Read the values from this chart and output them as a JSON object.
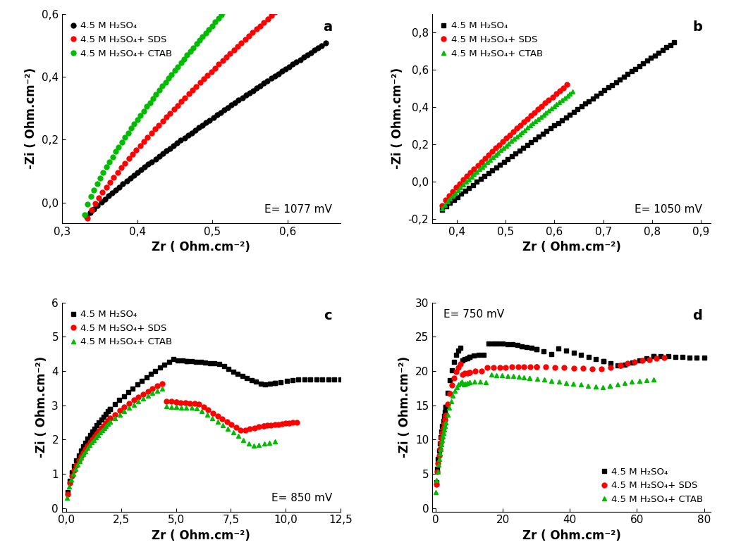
{
  "panel_labels": [
    "a",
    "b",
    "c",
    "d"
  ],
  "voltage_labels": [
    "E= 1077 mV",
    "E= 1050 mV",
    "E= 850 mV",
    "E= 750 mV"
  ],
  "legend_labels_a": [
    "4.5 M H₂SO₄",
    "4.5 M H₂SO₄+ SDS",
    "4.5 M H₂SO₄+ CTAB"
  ],
  "legend_labels_bcd": [
    "4.5 M H₂SO₄",
    "4.5 M H₂SO₄+ SDS",
    "4.5 M H₂SO₄+ CTAB"
  ],
  "colors": [
    "#000000",
    "#ff0000",
    "#00bb00"
  ],
  "xlabel": "Zr ( Ohm.cm⁻²)",
  "ylabel": "-Zi ( Ohm.cm⁻²)",
  "xlim_a": [
    0.3,
    0.67
  ],
  "ylim_a": [
    -0.065,
    0.6
  ],
  "xticks_a": [
    0.3,
    0.4,
    0.5,
    0.6
  ],
  "yticks_a": [
    0.0,
    0.2,
    0.4,
    0.6
  ],
  "xlim_b": [
    0.35,
    0.92
  ],
  "ylim_b": [
    -0.22,
    0.9
  ],
  "xticks_b": [
    0.4,
    0.5,
    0.6,
    0.7,
    0.8,
    0.9
  ],
  "yticks_b": [
    -0.2,
    0.0,
    0.2,
    0.4,
    0.6,
    0.8
  ],
  "xlim_c": [
    -0.2,
    12.5
  ],
  "ylim_c": [
    -0.1,
    6
  ],
  "xticks_c": [
    0.0,
    2.5,
    5.0,
    7.5,
    10.0,
    12.5
  ],
  "yticks_c": [
    0,
    1,
    2,
    3,
    4,
    5,
    6
  ],
  "xlim_d": [
    -1,
    82
  ],
  "ylim_d": [
    -0.5,
    30
  ],
  "xticks_d": [
    0,
    20,
    40,
    60,
    80
  ],
  "yticks_d": [
    0,
    5,
    10,
    15,
    20,
    25,
    30
  ]
}
